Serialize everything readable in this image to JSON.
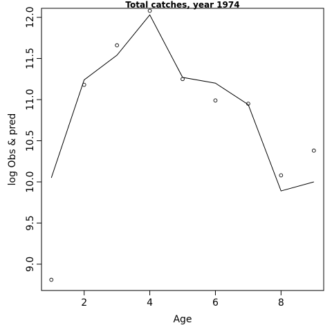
{
  "chart_data": {
    "type": "line",
    "title": "Total catches, year 1974",
    "xlabel": "Age",
    "ylabel": "log Obs & pred",
    "xlim": [
      0.7,
      9.3
    ],
    "ylim": [
      8.68,
      12.11
    ],
    "xticks": [
      2,
      4,
      6,
      8
    ],
    "yticks": [
      9.0,
      9.5,
      10.0,
      10.5,
      11.0,
      11.5,
      12.0
    ],
    "xtick_labels": [
      "2",
      "4",
      "6",
      "8"
    ],
    "ytick_labels": [
      "9.0",
      "9.5",
      "10.0",
      "10.5",
      "11.0",
      "11.5",
      "12.0"
    ],
    "grid": false,
    "legend": "none",
    "series": [
      {
        "kind": "points",
        "marker": "open-circle",
        "x": [
          1,
          2,
          3,
          4,
          5,
          6,
          7,
          8,
          9
        ],
        "y": [
          8.81,
          11.18,
          11.66,
          12.08,
          11.25,
          10.99,
          10.95,
          10.08,
          10.38
        ]
      },
      {
        "kind": "line",
        "x": [
          1,
          2,
          3,
          4,
          5,
          6,
          7,
          8,
          9
        ],
        "y": [
          10.05,
          11.24,
          11.54,
          12.03,
          11.27,
          11.2,
          10.94,
          9.89,
          10.0
        ]
      }
    ]
  }
}
